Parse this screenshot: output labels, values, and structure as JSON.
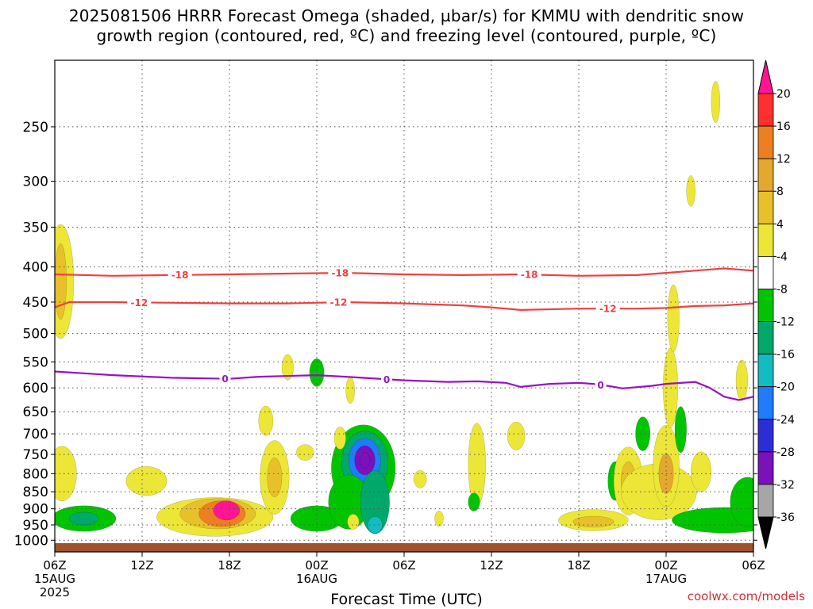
{
  "title": {
    "line1": "2025081506 HRRR Forecast Omega (shaded, µbar/s) for KMMU with dendritic snow",
    "line2": "growth region (contoured, red, ºC) and freezing level (contoured, purple, ºC)"
  },
  "watermark": "coolwx.com/models",
  "chart_data": {
    "type": "heatmap",
    "title": "2025081506 HRRR Forecast Omega (shaded, µbar/s) for KMMU with dendritic snow growth region (contoured, red, ºC) and freezing level (contoured, purple, ºC)",
    "xlabel": "Forecast Time (UTC)",
    "ylabel": "",
    "x_ticks": [
      {
        "hour": 0,
        "label": "06Z",
        "sub": "15AUG",
        "sub2": "2025"
      },
      {
        "hour": 6,
        "label": "12Z"
      },
      {
        "hour": 12,
        "label": "18Z"
      },
      {
        "hour": 18,
        "label": "00Z",
        "sub": "16AUG"
      },
      {
        "hour": 24,
        "label": "06Z"
      },
      {
        "hour": 30,
        "label": "12Z"
      },
      {
        "hour": 36,
        "label": "18Z"
      },
      {
        "hour": 42,
        "label": "00Z",
        "sub": "17AUG"
      },
      {
        "hour": 48,
        "label": "06Z"
      }
    ],
    "xlim_hours": [
      0,
      48
    ],
    "y_ticks": [
      250,
      300,
      350,
      400,
      450,
      500,
      550,
      600,
      650,
      700,
      750,
      800,
      850,
      900,
      950,
      1000
    ],
    "ylim_mb": [
      200,
      1040
    ],
    "y_scale": "log",
    "grid": true,
    "colorbar": {
      "boundaries": [
        20,
        16,
        12,
        8,
        4,
        -4,
        -8,
        -12,
        -16,
        -20,
        -24,
        -28,
        -32,
        -36
      ],
      "colors": [
        "#ff1493",
        "#ff2f2f",
        "#ee7f20",
        "#e5a82e",
        "#e8c12a",
        "#ece636",
        "#ffffff",
        "#00c400",
        "#00a86a",
        "#12bcc2",
        "#1f7bff",
        "#2d2dd8",
        "#7a11bb",
        "#a6a6a6",
        "#000000"
      ],
      "top_arrow_color": "#ff1493",
      "bottom_arrow_color": "#000000"
    },
    "omega_features": [
      {
        "t": 0.4,
        "p": 420,
        "dt": 0.45,
        "dp": 60,
        "v": 6
      },
      {
        "t": 0.4,
        "p": 420,
        "dt": 0.2,
        "dp": 40,
        "v": 9
      },
      {
        "t": 0.5,
        "p": 800,
        "dt": 0.5,
        "dp": 55,
        "v": 5
      },
      {
        "t": 2.0,
        "p": 930,
        "dt": 1.1,
        "dp": 30,
        "v": -6
      },
      {
        "t": 2.0,
        "p": 930,
        "dt": 0.5,
        "dp": 15,
        "v": -9
      },
      {
        "t": 6.3,
        "p": 820,
        "dt": 0.7,
        "dp": 30,
        "v": 5
      },
      {
        "t": 11.0,
        "p": 925,
        "dt": 2.0,
        "dp": 45,
        "v": 6
      },
      {
        "t": 11.2,
        "p": 915,
        "dt": 1.3,
        "dp": 35,
        "v": 11
      },
      {
        "t": 11.5,
        "p": 915,
        "dt": 0.8,
        "dp": 30,
        "v": 16
      },
      {
        "t": 11.8,
        "p": 905,
        "dt": 0.45,
        "dp": 22,
        "v": 22
      },
      {
        "t": 15.1,
        "p": 810,
        "dt": 0.5,
        "dp": 75,
        "v": 6
      },
      {
        "t": 15.1,
        "p": 810,
        "dt": 0.25,
        "dp": 40,
        "v": 10
      },
      {
        "t": 14.5,
        "p": 670,
        "dt": 0.25,
        "dp": 25,
        "v": 5
      },
      {
        "t": 16.0,
        "p": 560,
        "dt": 0.2,
        "dp": 18,
        "v": 5
      },
      {
        "t": 17.2,
        "p": 745,
        "dt": 0.3,
        "dp": 15,
        "v": 5
      },
      {
        "t": 18.0,
        "p": 930,
        "dt": 0.9,
        "dp": 30,
        "v": -6
      },
      {
        "t": 18.0,
        "p": 570,
        "dt": 0.25,
        "dp": 20,
        "v": -5
      },
      {
        "t": 21.2,
        "p": 785,
        "dt": 1.1,
        "dp": 85,
        "v": -6
      },
      {
        "t": 21.3,
        "p": 770,
        "dt": 0.8,
        "dp": 60,
        "v": -11
      },
      {
        "t": 21.3,
        "p": 765,
        "dt": 0.55,
        "dp": 42,
        "v": -17
      },
      {
        "t": 21.3,
        "p": 765,
        "dt": 0.35,
        "dp": 28,
        "v": -25
      },
      {
        "t": 21.3,
        "p": 765,
        "dt": 0.18,
        "dp": 15,
        "v": -30
      },
      {
        "t": 20.2,
        "p": 880,
        "dt": 0.7,
        "dp": 60,
        "v": -7
      },
      {
        "t": 22.0,
        "p": 880,
        "dt": 0.5,
        "dp": 70,
        "v": -8
      },
      {
        "t": 22.0,
        "p": 950,
        "dt": 0.25,
        "dp": 20,
        "v": -14
      },
      {
        "t": 20.5,
        "p": 940,
        "dt": 0.2,
        "dp": 18,
        "v": 5
      },
      {
        "t": 19.6,
        "p": 710,
        "dt": 0.2,
        "dp": 20,
        "v": 5
      },
      {
        "t": 20.3,
        "p": 605,
        "dt": 0.15,
        "dp": 20,
        "v": 5
      },
      {
        "t": 25.1,
        "p": 815,
        "dt": 0.22,
        "dp": 18,
        "v": 5
      },
      {
        "t": 29.0,
        "p": 775,
        "dt": 0.3,
        "dp": 80,
        "v": 5
      },
      {
        "t": 31.7,
        "p": 705,
        "dt": 0.3,
        "dp": 25,
        "v": 5
      },
      {
        "t": 28.8,
        "p": 880,
        "dt": 0.2,
        "dp": 20,
        "v": -6
      },
      {
        "t": 37.0,
        "p": 935,
        "dt": 1.2,
        "dp": 25,
        "v": 6
      },
      {
        "t": 37.0,
        "p": 940,
        "dt": 0.7,
        "dp": 13,
        "v": 10
      },
      {
        "t": 38.5,
        "p": 820,
        "dt": 0.25,
        "dp": 40,
        "v": -6
      },
      {
        "t": 39.4,
        "p": 820,
        "dt": 0.5,
        "dp": 70,
        "v": 6
      },
      {
        "t": 39.4,
        "p": 820,
        "dt": 0.25,
        "dp": 40,
        "v": 11
      },
      {
        "t": 40.4,
        "p": 700,
        "dt": 0.25,
        "dp": 30,
        "v": -6
      },
      {
        "t": 41.5,
        "p": 850,
        "dt": 1.3,
        "dp": 60,
        "v": 6
      },
      {
        "t": 42.0,
        "p": 780,
        "dt": 0.45,
        "dp": 80,
        "v": 7
      },
      {
        "t": 42.0,
        "p": 800,
        "dt": 0.25,
        "dp": 40,
        "v": 12
      },
      {
        "t": 42.3,
        "p": 600,
        "dt": 0.25,
        "dp": 60,
        "v": 5
      },
      {
        "t": 42.5,
        "p": 475,
        "dt": 0.2,
        "dp": 40,
        "v": 5
      },
      {
        "t": 43.0,
        "p": 690,
        "dt": 0.2,
        "dp": 40,
        "v": -6
      },
      {
        "t": 44.4,
        "p": 795,
        "dt": 0.35,
        "dp": 40,
        "v": 5
      },
      {
        "t": 46.0,
        "p": 935,
        "dt": 1.8,
        "dp": 30,
        "v": -6
      },
      {
        "t": 47.6,
        "p": 880,
        "dt": 0.6,
        "dp": 55,
        "v": -7
      },
      {
        "t": 47.2,
        "p": 585,
        "dt": 0.2,
        "dp": 30,
        "v": 5
      },
      {
        "t": 45.4,
        "p": 230,
        "dt": 0.15,
        "dp": 12,
        "v": 5
      },
      {
        "t": 43.7,
        "p": 310,
        "dt": 0.15,
        "dp": 12,
        "v": 5
      },
      {
        "t": 26.4,
        "p": 930,
        "dt": 0.15,
        "dp": 18,
        "v": 5
      }
    ],
    "contours": [
      {
        "name": "-18",
        "color": "#f04040",
        "label": "-18",
        "points": [
          [
            0,
            410
          ],
          [
            4,
            412
          ],
          [
            8,
            411
          ],
          [
            12,
            410
          ],
          [
            16,
            409
          ],
          [
            20,
            408
          ],
          [
            24,
            410
          ],
          [
            28,
            411
          ],
          [
            32,
            410
          ],
          [
            36,
            412
          ],
          [
            40,
            411
          ],
          [
            42,
            408
          ],
          [
            44,
            405
          ],
          [
            46,
            402
          ],
          [
            48,
            405
          ]
        ],
        "labels_at": [
          8.6,
          19.6,
          32.6
        ]
      },
      {
        "name": "-12",
        "color": "#f04040",
        "label": "-12",
        "points": [
          [
            0,
            458
          ],
          [
            1,
            450
          ],
          [
            4,
            450
          ],
          [
            8,
            451
          ],
          [
            12,
            452
          ],
          [
            16,
            452
          ],
          [
            20,
            450
          ],
          [
            24,
            452
          ],
          [
            28,
            455
          ],
          [
            30,
            458
          ],
          [
            32,
            462
          ],
          [
            36,
            460
          ],
          [
            40,
            460
          ],
          [
            42,
            459
          ],
          [
            44,
            456
          ],
          [
            46,
            455
          ],
          [
            48,
            452
          ]
        ],
        "labels_at": [
          5.8,
          19.5,
          38.0
        ]
      },
      {
        "name": "0",
        "color": "#9a10c8",
        "label": "0",
        "points": [
          [
            0,
            568
          ],
          [
            4,
            575
          ],
          [
            8,
            580
          ],
          [
            12,
            582
          ],
          [
            14,
            578
          ],
          [
            18,
            575
          ],
          [
            20,
            578
          ],
          [
            24,
            585
          ],
          [
            27,
            588
          ],
          [
            29,
            587
          ],
          [
            31,
            590
          ],
          [
            32,
            598
          ],
          [
            34,
            592
          ],
          [
            36,
            590
          ],
          [
            37,
            592
          ],
          [
            38,
            596
          ],
          [
            39,
            601
          ],
          [
            41,
            596
          ],
          [
            42,
            592
          ],
          [
            44,
            588
          ],
          [
            45,
            600
          ],
          [
            46,
            618
          ],
          [
            47,
            625
          ],
          [
            48,
            618
          ]
        ],
        "labels_at": [
          11.7,
          22.8,
          37.5
        ]
      }
    ],
    "ground_color": "#a0522d"
  }
}
